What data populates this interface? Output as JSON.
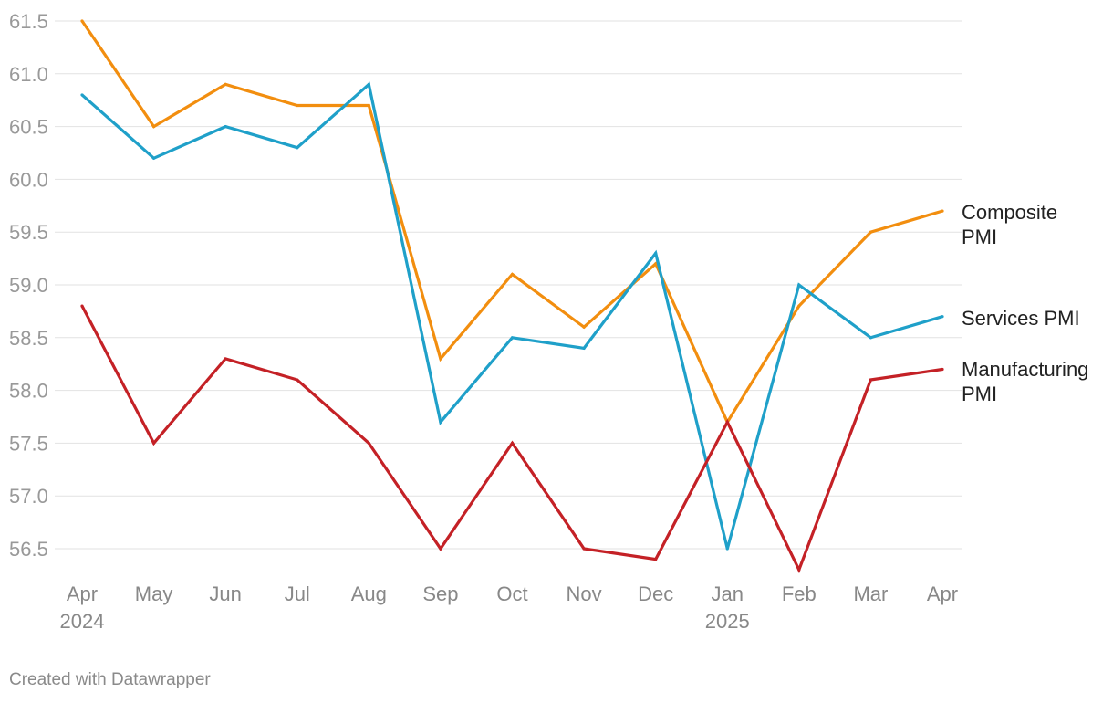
{
  "chart_data": {
    "type": "line",
    "categories": [
      "Apr",
      "May",
      "Jun",
      "Jul",
      "Aug",
      "Sep",
      "Oct",
      "Nov",
      "Dec",
      "Jan",
      "Feb",
      "Mar",
      "Apr"
    ],
    "year_labels": [
      "2024",
      "",
      "",
      "",
      "",
      "",
      "",
      "",
      "",
      "2025",
      "",
      "",
      ""
    ],
    "y_ticks": [
      "61.5",
      "61.0",
      "60.5",
      "60.0",
      "59.5",
      "59.0",
      "58.5",
      "58.0",
      "57.5",
      "57.0",
      "56.5"
    ],
    "ylim": [
      56.5,
      61.5
    ],
    "grid": true,
    "legend": "inline-right",
    "series": [
      {
        "name": "Composite PMI",
        "label_lines": [
          "Composite",
          "PMI"
        ],
        "color": "#f28e0f",
        "values": [
          61.5,
          60.5,
          60.9,
          60.7,
          60.7,
          58.3,
          59.1,
          58.6,
          59.2,
          57.7,
          58.8,
          59.5,
          59.7
        ]
      },
      {
        "name": "Services PMI",
        "label_lines": [
          "Services PMI"
        ],
        "color": "#1fa0c9",
        "values": [
          60.8,
          60.2,
          60.5,
          60.3,
          60.9,
          57.7,
          58.5,
          58.4,
          59.3,
          56.5,
          59.0,
          58.5,
          58.7
        ]
      },
      {
        "name": "Manufacturing PMI",
        "label_lines": [
          "Manufacturing",
          "PMI"
        ],
        "color": "#c42126",
        "values": [
          58.8,
          57.5,
          58.3,
          58.1,
          57.5,
          56.5,
          57.5,
          56.5,
          56.4,
          57.7,
          56.3,
          58.1,
          58.2
        ]
      }
    ]
  },
  "footer": {
    "credit": "Created with Datawrapper"
  }
}
